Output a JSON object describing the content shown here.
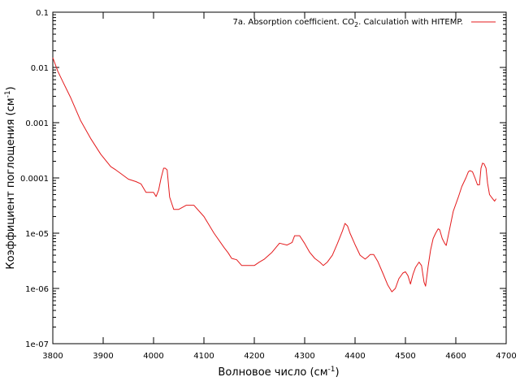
{
  "chart_data": {
    "type": "line",
    "xlabel": {
      "main": "Волновое число (см",
      "sup": "-1",
      "tail": ")"
    },
    "ylabel": {
      "main": "Коэффициент поглощения (см",
      "sup": "-1",
      "tail": ")"
    },
    "xlim": [
      3800,
      4700
    ],
    "ylim": [
      1e-07,
      0.1
    ],
    "yscale": "log",
    "x_ticks": [
      "3800",
      "3900",
      "4000",
      "4100",
      "4200",
      "4300",
      "4400",
      "4500",
      "4600",
      "4700"
    ],
    "y_ticks": [
      "1e-07",
      "1e-06",
      "1e-05",
      "0.0001",
      "0.001",
      "0.01",
      "0.1"
    ],
    "grid": false,
    "legend_position": "top-right",
    "series": [
      {
        "name": {
          "pre": "7a. Absorption coefficient. CO",
          "sub": "2",
          "post": ". Calculation with HITEMP."
        },
        "color": "#e41a1c",
        "x": [
          3800,
          3810,
          3820,
          3835,
          3855,
          3875,
          3895,
          3915,
          3925,
          3935,
          3950,
          3965,
          3975,
          3985,
          3995,
          4000,
          4005,
          4010,
          4015,
          4020,
          4023,
          4027,
          4032,
          4040,
          4050,
          4065,
          4080,
          4100,
          4120,
          4140,
          4148,
          4155,
          4165,
          4175,
          4185,
          4200,
          4210,
          4220,
          4235,
          4250,
          4265,
          4275,
          4280,
          4290,
          4300,
          4310,
          4320,
          4330,
          4337,
          4345,
          4355,
          4365,
          4375,
          4380,
          4385,
          4390,
          4400,
          4410,
          4420,
          4425,
          4430,
          4437,
          4445,
          4455,
          4465,
          4473,
          4480,
          4487,
          4495,
          4500,
          4505,
          4510,
          4515,
          4520,
          4527,
          4532,
          4537,
          4540,
          4545,
          4550,
          4555,
          4560,
          4565,
          4568,
          4573,
          4578,
          4581,
          4587,
          4595,
          4605,
          4612,
          4620,
          4625,
          4628,
          4633,
          4638,
          4643,
          4647,
          4650,
          4653,
          4656,
          4660,
          4663,
          4667,
          4673,
          4677,
          4680
        ],
        "y": [
          0.015,
          0.0085,
          0.0055,
          0.0029,
          0.0011,
          0.00052,
          0.00027,
          0.00016,
          0.00014,
          0.00012,
          9.5e-05,
          8.6e-05,
          7.8e-05,
          5.5e-05,
          5.5e-05,
          5.5e-05,
          4.6e-05,
          6e-05,
          0.0001,
          0.00015,
          0.00015,
          0.00014,
          4.5e-05,
          2.7e-05,
          2.7e-05,
          3.2e-05,
          3.2e-05,
          2e-05,
          1e-05,
          5.5e-06,
          4.4e-06,
          3.5e-06,
          3.3e-06,
          2.6e-06,
          2.6e-06,
          2.6e-06,
          3e-06,
          3.4e-06,
          4.5e-06,
          6.6e-06,
          6.1e-06,
          6.8e-06,
          9e-06,
          9e-06,
          6.5e-06,
          4.5e-06,
          3.5e-06,
          3e-06,
          2.6e-06,
          3e-06,
          4e-06,
          6.5e-06,
          1.1e-05,
          1.5e-05,
          1.35e-05,
          1e-05,
          6.2e-06,
          4e-06,
          3.4e-06,
          3.7e-06,
          4.1e-06,
          4.1e-06,
          3.1e-06,
          1.9e-06,
          1.15e-06,
          8.7e-07,
          1e-06,
          1.5e-06,
          1.9e-06,
          2e-06,
          1.7e-06,
          1.2e-06,
          1.8e-06,
          2.4e-06,
          3e-06,
          2.6e-06,
          1.3e-06,
          1.1e-06,
          2.5e-06,
          5e-06,
          8e-06,
          1e-05,
          1.2e-05,
          1.15e-05,
          8e-06,
          6.5e-06,
          6e-06,
          1.1e-05,
          2.5e-05,
          4.5e-05,
          7e-05,
          0.0001,
          0.00013,
          0.000135,
          0.00013,
          0.0001,
          7.5e-05,
          7.5e-05,
          0.00015,
          0.000185,
          0.00018,
          0.00015,
          8e-05,
          5e-05,
          4.2e-05,
          3.8e-05,
          4.2e-05
        ]
      }
    ]
  }
}
